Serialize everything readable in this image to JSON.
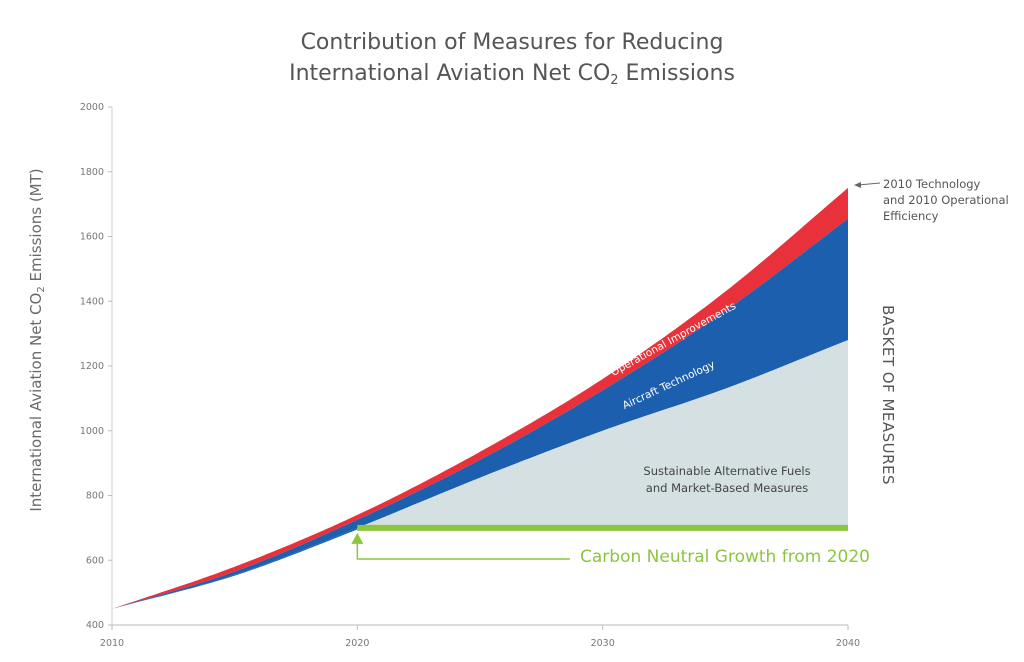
{
  "chart_data": {
    "type": "area",
    "title_line1": "Contribution of Measures for Reducing",
    "title_line2_prefix": "International Aviation Net CO",
    "title_line2_sub": "2",
    "title_line2_suffix": " Emissions",
    "ylabel_prefix": "International Aviation Net CO",
    "ylabel_sub": "2",
    "ylabel_suffix": " Emissions (MT)",
    "xlim": [
      2010,
      2040
    ],
    "ylim": [
      400,
      2000
    ],
    "x_ticks": [
      "2010",
      "2020",
      "2030",
      "2040"
    ],
    "y_ticks": [
      "2000",
      "1800",
      "1600",
      "1400",
      "1200",
      "1000",
      "800",
      "600",
      "400"
    ],
    "x": [
      2010,
      2015,
      2020,
      2025,
      2030,
      2035,
      2040
    ],
    "series": [
      {
        "name": "2010 Technology and 2010 Operational Efficiency",
        "color": "#e8313a",
        "values": [
          450,
          580,
          740,
          935,
          1160,
          1430,
          1750
        ]
      },
      {
        "name": "Operational Improvements",
        "color": "#1c5fae",
        "values": [
          450,
          565,
          725,
          910,
          1125,
          1370,
          1655
        ]
      },
      {
        "name": "Aircraft Technology",
        "color": "#d5e0e3",
        "values": [
          450,
          555,
          700,
          855,
          1000,
          1130,
          1280
        ]
      },
      {
        "name": "Carbon Neutral Growth from 2020",
        "color": "#8cc63f",
        "values": [
          null,
          null,
          700,
          700,
          700,
          700,
          700
        ]
      }
    ],
    "annotations": {
      "tech_line1": "2010 Technology",
      "tech_line2": "and 2010 Operational",
      "tech_line3": "Efficiency",
      "operational": "Operational Improvements",
      "aircraft": "Aircraft Technology",
      "fuels_line1": "Sustainable Alternative Fuels",
      "fuels_line2": "and Market-Based Measures",
      "neutral": "Carbon Neutral Growth from 2020",
      "basket": "BASKET OF MEASURES"
    }
  }
}
